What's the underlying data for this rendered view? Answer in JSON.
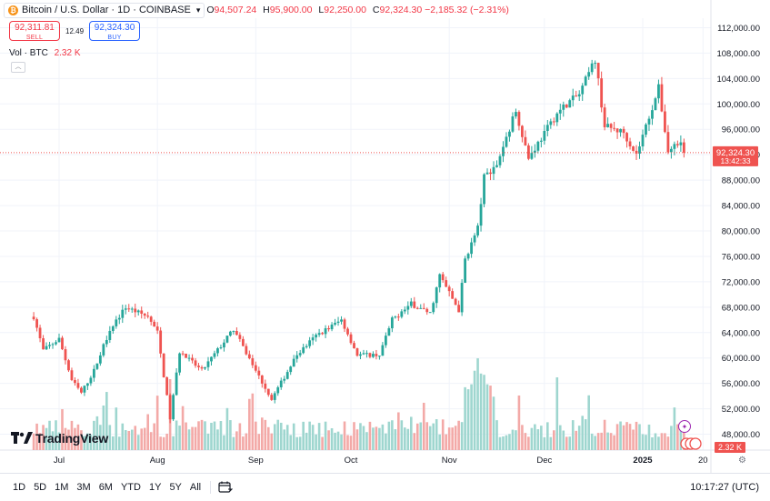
{
  "header": {
    "symbol_title": "Bitcoin / U.S. Dollar · 1D · COINBASE",
    "ohlc": [
      {
        "key": "O",
        "value": "94,507.24"
      },
      {
        "key": "H",
        "value": "95,900.00"
      },
      {
        "key": "L",
        "value": "92,250.00"
      },
      {
        "key": "C",
        "value": "92,324.30 −2,185.32 (−2.31%)"
      }
    ]
  },
  "trade": {
    "sell_price": "92,311.81",
    "sell_label": "SELL",
    "spread": "12.49",
    "buy_price": "92,324.30",
    "buy_label": "BUY"
  },
  "volume_legend": {
    "label": "Vol · BTC",
    "value": "2.32 K"
  },
  "branding": {
    "logo_text": "TradingView"
  },
  "timeframes": [
    "1D",
    "5D",
    "1M",
    "3M",
    "6M",
    "YTD",
    "1Y",
    "5Y",
    "All"
  ],
  "clock": "10:17:27 (UTC)",
  "colors": {
    "up": "#26a69a",
    "down": "#ef5350",
    "vol_up": "#9ed6cf",
    "vol_down": "#f3a9a7",
    "grid": "#f0f3fa"
  },
  "icons": {
    "gear": "gear-icon",
    "calendar": "calendar-range-icon",
    "btc": "bitcoin-icon"
  },
  "chart_data": {
    "type": "candlestick",
    "title": "Bitcoin / U.S. Dollar · 1D · COINBASE",
    "y_ticks": [
      48000,
      52000,
      56000,
      60000,
      64000,
      68000,
      72000,
      76000,
      80000,
      84000,
      88000,
      92000,
      96000,
      100000,
      104000,
      108000,
      112000
    ],
    "ylim": [
      45500,
      113500
    ],
    "x_labels": [
      "Jul",
      "Aug",
      "Sep",
      "Oct",
      "Nov",
      "Dec",
      "2025",
      "20"
    ],
    "x_label_dates": [
      "2024-07-01",
      "2024-08-01",
      "2024-09-01",
      "2024-10-01",
      "2024-11-01",
      "2024-12-01",
      "2025-01-01",
      "2025-01-20"
    ],
    "last_price_label": "92,324.30",
    "countdown_label": "13:42:33",
    "last_volume_label": "2.32 K",
    "series": [
      {
        "name": "Price",
        "anchors": [
          [
            "2024-06-23",
            66500
          ],
          [
            "2024-06-26",
            61200
          ],
          [
            "2024-07-01",
            63000
          ],
          [
            "2024-07-05",
            56500
          ],
          [
            "2024-07-08",
            54500
          ],
          [
            "2024-07-12",
            58000
          ],
          [
            "2024-07-17",
            64500
          ],
          [
            "2024-07-22",
            68000
          ],
          [
            "2024-07-29",
            66500
          ],
          [
            "2024-08-01",
            64000
          ],
          [
            "2024-08-05",
            50500
          ],
          [
            "2024-08-08",
            61000
          ],
          [
            "2024-08-15",
            58000
          ],
          [
            "2024-08-25",
            64500
          ],
          [
            "2024-09-01",
            58000
          ],
          [
            "2024-09-06",
            53500
          ],
          [
            "2024-09-14",
            60500
          ],
          [
            "2024-09-20",
            63500
          ],
          [
            "2024-09-28",
            66000
          ],
          [
            "2024-10-03",
            60500
          ],
          [
            "2024-10-10",
            60500
          ],
          [
            "2024-10-14",
            66000
          ],
          [
            "2024-10-20",
            68500
          ],
          [
            "2024-10-26",
            67000
          ],
          [
            "2024-10-29",
            73000
          ],
          [
            "2024-11-04",
            67500
          ],
          [
            "2024-11-06",
            75500
          ],
          [
            "2024-11-10",
            80500
          ],
          [
            "2024-11-12",
            88500
          ],
          [
            "2024-11-16",
            90500
          ],
          [
            "2024-11-22",
            99000
          ],
          [
            "2024-11-26",
            91500
          ],
          [
            "2024-12-05",
            98500
          ],
          [
            "2024-12-08",
            100000
          ],
          [
            "2024-12-12",
            101500
          ],
          [
            "2024-12-17",
            107000
          ],
          [
            "2024-12-20",
            96500
          ],
          [
            "2024-12-26",
            95500
          ],
          [
            "2024-12-30",
            92000
          ],
          [
            "2025-01-06",
            102500
          ],
          [
            "2025-01-09",
            92500
          ],
          [
            "2025-01-13",
            94500
          ],
          [
            "2025-01-14",
            92324
          ]
        ]
      },
      {
        "name": "Vol · BTC",
        "note": "daily volume bars",
        "latest": "2.32 K"
      }
    ]
  }
}
